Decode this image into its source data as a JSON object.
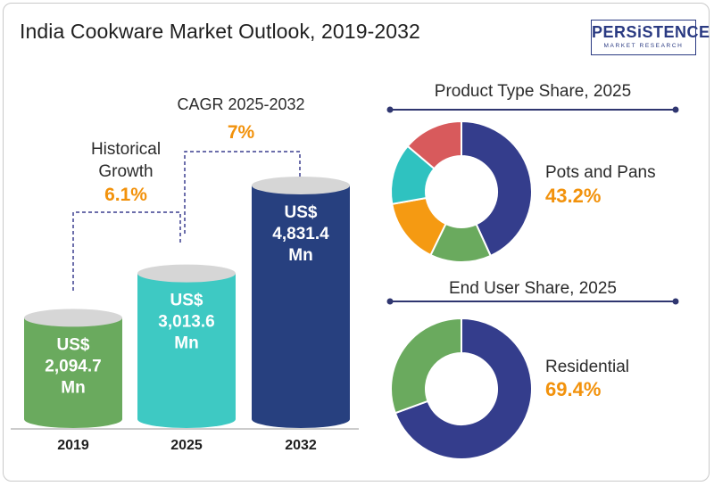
{
  "title": "India Cookware Market Outlook, 2019-2032",
  "logo": {
    "main": "PERSiSTENCE",
    "sub": "MARKET RESEARCH"
  },
  "annotations": {
    "historical_label_1": "Historical",
    "historical_label_2": "Growth",
    "historical_value": "6.1%",
    "cagr_label": "CAGR 2025-2032",
    "cagr_value": "7%"
  },
  "colors": {
    "bar_2019": "#6aaa5e",
    "bar_2025": "#3ec9c3",
    "bar_2032": "#27407f",
    "bar_top": "#d6d6d6",
    "accent_orange": "#f2920c",
    "segment_navy": "#343d8c",
    "segment_green": "#6aaa5e",
    "segment_orange": "#f59a12",
    "segment_teal": "#2fc2c0",
    "segment_red": "#d85a5c"
  },
  "chart_data": [
    {
      "type": "bar",
      "title": "",
      "categories": [
        "2019",
        "2025",
        "2032"
      ],
      "values": [
        2094.7,
        3013.6,
        4831.4
      ],
      "value_labels": [
        [
          "US$",
          "2,094.7",
          "Mn"
        ],
        [
          "US$",
          "3,013.6",
          "Mn"
        ],
        [
          "US$",
          "4,831.4",
          "Mn"
        ]
      ],
      "unit": "US$ Mn"
    },
    {
      "type": "pie",
      "title": "Product Type Share, 2025",
      "highlight_label": "Pots and Pans",
      "highlight_value": "43.2%",
      "slices": [
        {
          "label": "Pots and Pans",
          "value": 43.2,
          "color": "#343d8c"
        },
        {
          "value": 14.0,
          "color": "#6aaa5e"
        },
        {
          "value": 15.0,
          "color": "#f59a12"
        },
        {
          "value": 14.0,
          "color": "#2fc2c0"
        },
        {
          "value": 13.8,
          "color": "#d85a5c"
        }
      ]
    },
    {
      "type": "pie",
      "title": "End User Share, 2025",
      "highlight_label": "Residential",
      "highlight_value": "69.4%",
      "slices": [
        {
          "label": "Residential",
          "value": 69.4,
          "color": "#343d8c"
        },
        {
          "value": 30.6,
          "color": "#6aaa5e"
        }
      ]
    }
  ]
}
